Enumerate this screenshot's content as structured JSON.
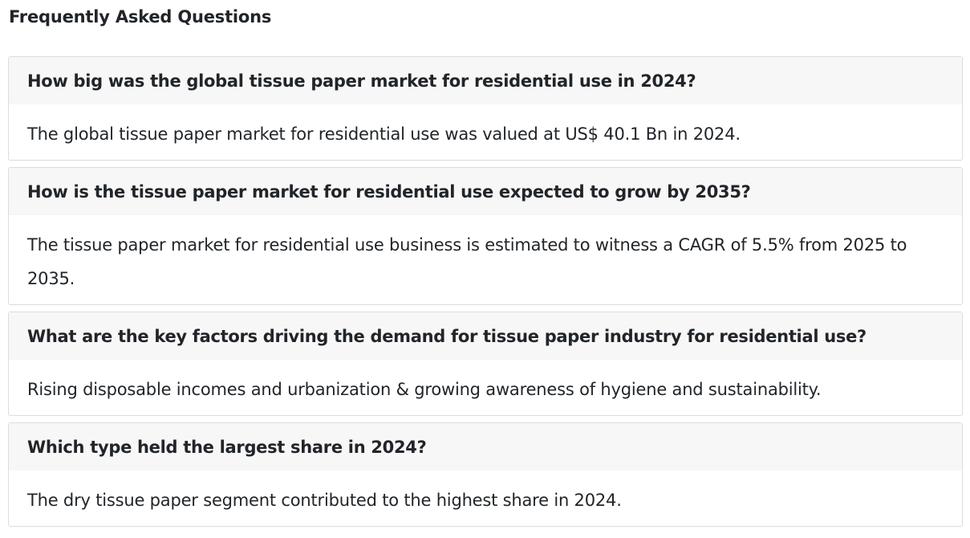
{
  "page": {
    "title": "Frequently Asked Questions"
  },
  "faqs": [
    {
      "question": "How big was the global tissue paper market for residential use in 2024?",
      "answer": "The global tissue paper market for residential use was valued at US$ 40.1 Bn in 2024."
    },
    {
      "question": "How is the tissue paper market for residential use expected to grow by 2035?",
      "answer": "The tissue paper market for residential use business is estimated to witness a CAGR of 5.5% from 2025 to 2035."
    },
    {
      "question": "What are the key factors driving the demand for tissue paper industry for residential use?",
      "answer": "Rising disposable incomes and urbanization & growing awareness of hygiene and sustainability."
    },
    {
      "question": "Which type held the largest share in 2024?",
      "answer": "The dry tissue paper segment contributed to the highest share in 2024."
    }
  ]
}
